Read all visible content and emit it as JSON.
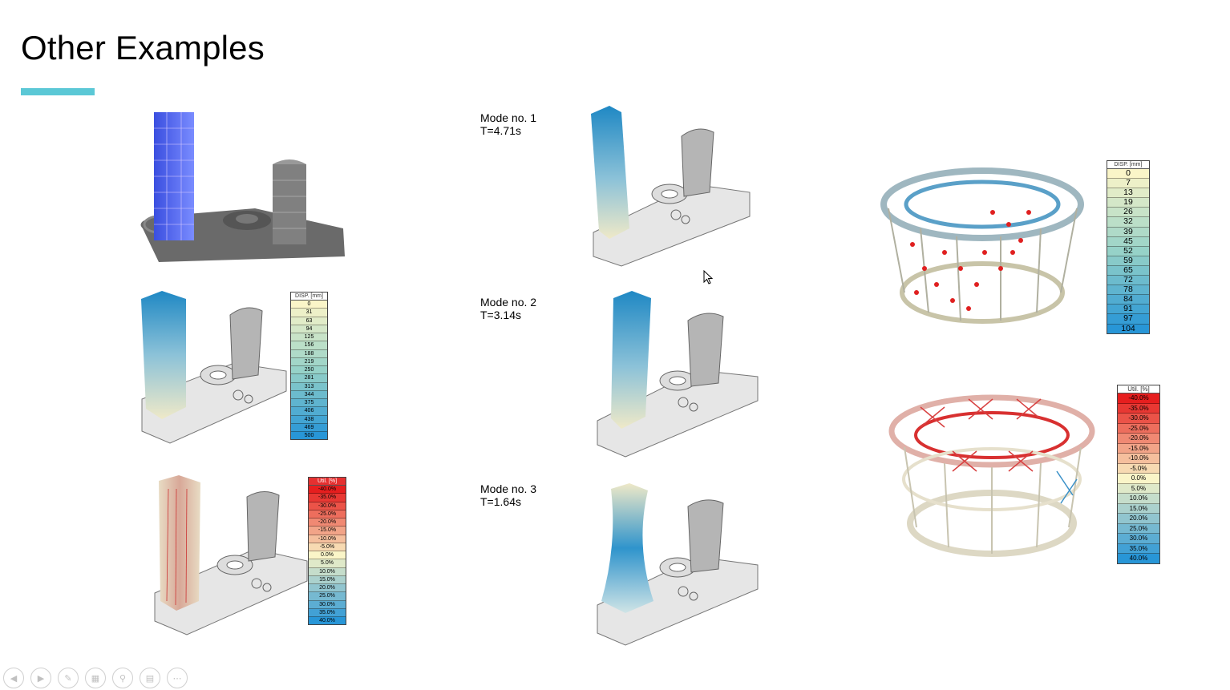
{
  "slide": {
    "title": "Other Examples",
    "accent_color": "#5bc8d6"
  },
  "modes": [
    {
      "label": "Mode no. 1",
      "period": "T=4.71s"
    },
    {
      "label": "Mode no. 2",
      "period": "T=3.14s"
    },
    {
      "label": "Mode no. 3",
      "period": "T=1.64s"
    }
  ],
  "legends": {
    "tower_disp": {
      "header": "DISP. [mm]",
      "values": [
        "0",
        "31",
        "63",
        "94",
        "125",
        "156",
        "188",
        "219",
        "250",
        "281",
        "313",
        "344",
        "375",
        "406",
        "438",
        "469",
        "500"
      ]
    },
    "tower_util": {
      "header": "Util. [%]",
      "values": [
        "-40.0%",
        "-35.0%",
        "-30.0%",
        "-25.0%",
        "-20.0%",
        "-15.0%",
        "-10.0%",
        "-5.0%",
        "0.0%",
        "5.0%",
        "10.0%",
        "15.0%",
        "20.0%",
        "25.0%",
        "30.0%",
        "35.0%",
        "40.0%"
      ]
    },
    "ring_disp": {
      "header": "DISP. [mm]",
      "values": [
        "0",
        "7",
        "13",
        "19",
        "26",
        "32",
        "39",
        "45",
        "52",
        "59",
        "65",
        "72",
        "78",
        "84",
        "91",
        "97",
        "104"
      ]
    },
    "ring_util": {
      "header": "Util. [%]",
      "values": [
        "-40.0%",
        "-35.0%",
        "-30.0%",
        "-25.0%",
        "-20.0%",
        "-15.0%",
        "-10.0%",
        "-5.0%",
        "0.0%",
        "5.0%",
        "10.0%",
        "15.0%",
        "20.0%",
        "25.0%",
        "30.0%",
        "35.0%",
        "40.0%"
      ]
    }
  },
  "toolbar": {
    "icons": [
      "prev-icon",
      "next-icon",
      "pen-icon",
      "slides-icon",
      "zoom-icon",
      "subtitle-icon",
      "more-icon"
    ]
  }
}
